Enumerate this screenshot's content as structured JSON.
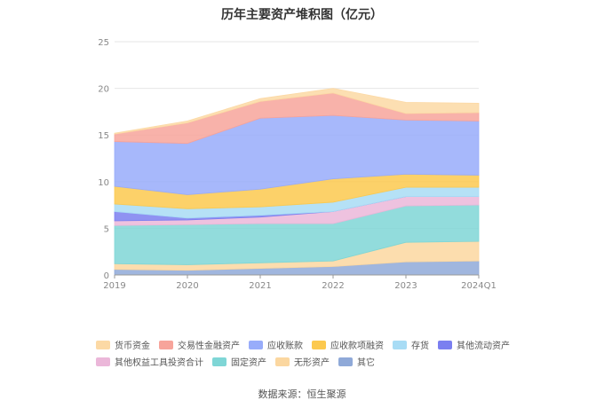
{
  "title": "历年主要资产堆积图（亿元）",
  "source": "数据来源：恒生聚源",
  "chart_data": {
    "type": "area",
    "stacked": true,
    "x": [
      "2019",
      "2020",
      "2021",
      "2022",
      "2023",
      "2024Q1"
    ],
    "ylim": [
      0,
      25
    ],
    "yticks": [
      0,
      5,
      10,
      15,
      20,
      25
    ],
    "grid": true,
    "legend_position": "bottom",
    "series": [
      {
        "name": "其它",
        "color": "#8fa9d8",
        "values": [
          0.6,
          0.5,
          0.7,
          0.9,
          1.4,
          1.5
        ]
      },
      {
        "name": "无形资产",
        "color": "#fbd7a0",
        "values": [
          0.6,
          0.6,
          0.6,
          0.6,
          2.1,
          2.1
        ]
      },
      {
        "name": "固定资产",
        "color": "#7fd6d6",
        "values": [
          4.1,
          4.3,
          4.2,
          4.0,
          3.9,
          3.9
        ]
      },
      {
        "name": "其他权益工具投资合计",
        "color": "#ebb7d9",
        "values": [
          0.5,
          0.5,
          0.7,
          1.3,
          1.0,
          0.9
        ]
      },
      {
        "name": "其他流动资产",
        "color": "#7b7ff0",
        "values": [
          1.0,
          0.2,
          0.2,
          0.0,
          0.0,
          0.0
        ]
      },
      {
        "name": "存货",
        "color": "#a8dcf5",
        "values": [
          0.8,
          1.0,
          0.9,
          1.0,
          1.0,
          1.0
        ]
      },
      {
        "name": "应收款项融资",
        "color": "#fcc94f",
        "values": [
          1.9,
          1.5,
          1.9,
          2.5,
          1.4,
          1.3
        ]
      },
      {
        "name": "应收账款",
        "color": "#98acfa",
        "values": [
          4.8,
          5.5,
          7.6,
          6.8,
          5.8,
          5.8
        ]
      },
      {
        "name": "交易性金融资产",
        "color": "#f7a49b",
        "values": [
          0.8,
          2.2,
          1.8,
          2.4,
          0.7,
          0.9
        ]
      },
      {
        "name": "货币资金",
        "color": "#fcd9a5",
        "values": [
          0.1,
          0.2,
          0.3,
          0.5,
          1.2,
          1.0
        ]
      }
    ]
  },
  "legend_order": [
    [
      "货币资金",
      "交易性金融资产",
      "应收账款",
      "应收款项融资",
      "存货",
      "其他流动资产"
    ],
    [
      "其他权益工具投资合计",
      "固定资产",
      "无形资产",
      "其它"
    ]
  ]
}
